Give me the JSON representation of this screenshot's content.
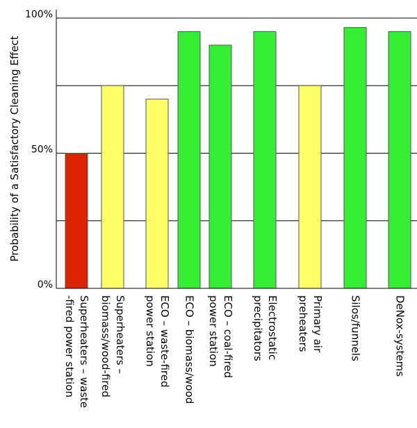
{
  "chart_data": {
    "type": "bar",
    "title": "",
    "xlabel": "",
    "ylabel": "Probability of a Satisfactory Cleaning Effect",
    "ylim": [
      0,
      100
    ],
    "grid": true,
    "yticks": [
      {
        "value": 0,
        "label": "0%"
      },
      {
        "value": 50,
        "label": "50%"
      },
      {
        "value": 100,
        "label": "100%"
      }
    ],
    "gridlines": [
      25,
      50,
      75,
      100
    ],
    "categories": [
      [
        "Superheaters – waste",
        "-fired power station"
      ],
      [
        "Superheaters –",
        "biomass/wood-fired"
      ],
      [
        "ECO – waste-fired",
        "power station"
      ],
      [
        "ECO – biomass/wood"
      ],
      [
        "ECO – coal-fired",
        "power station"
      ],
      [
        "Electrostatic",
        "precipitators"
      ],
      [
        "Primary air",
        "preheaters"
      ],
      [
        "Silos/funnels"
      ],
      [
        "DeNox-systems"
      ]
    ],
    "values": [
      50,
      75,
      70,
      95,
      90,
      95,
      75,
      96.5,
      95
    ],
    "bar_colors": [
      "#dd2200",
      "#ffff66",
      "#ffff66",
      "#33ee33",
      "#33ee33",
      "#33ee33",
      "#ffff66",
      "#33ee33",
      "#33ee33"
    ],
    "colors": {
      "red": "#dd2200",
      "yellow": "#ffff66",
      "green": "#33ee33",
      "bar_outline": "#555555",
      "axis": "#000000",
      "grid": "#000000"
    }
  }
}
